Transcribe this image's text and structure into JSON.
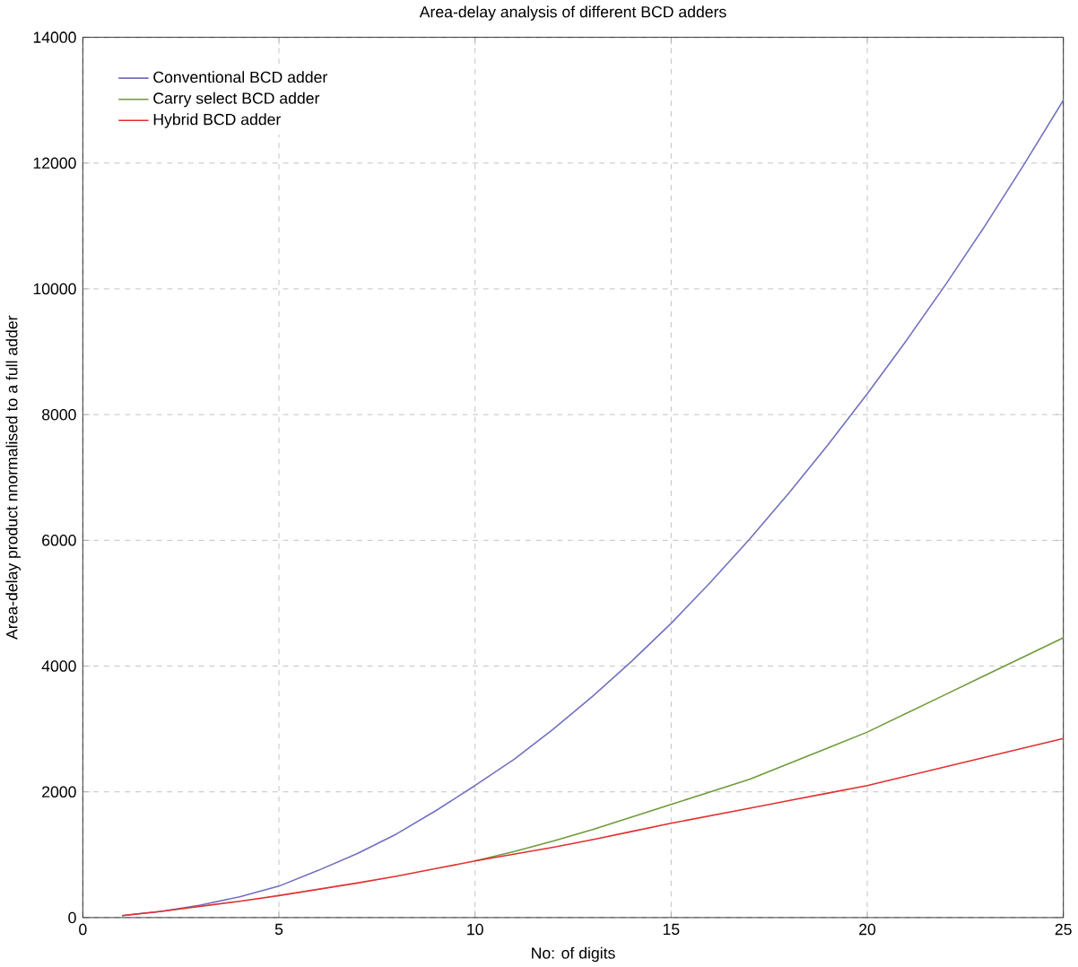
{
  "chart_data": {
    "type": "line",
    "title": "Area-delay analysis of different BCD adders",
    "xlabel": "No: of digits",
    "ylabel": "Area-delay product nnormalised to a full adder",
    "x": [
      1,
      2,
      3,
      4,
      5,
      6,
      7,
      8,
      9,
      10,
      11,
      12,
      13,
      14,
      15,
      16,
      17,
      18,
      19,
      20,
      21,
      22,
      23,
      24,
      25
    ],
    "series": [
      {
        "name": "Conventional BCD adder",
        "color": "#6f6fc0",
        "values": [
          30,
          100,
          200,
          330,
          500,
          750,
          1020,
          1330,
          1700,
          2100,
          2520,
          3000,
          3520,
          4080,
          4680,
          5330,
          6020,
          6750,
          7520,
          8330,
          9180,
          10070,
          11000,
          11980,
          13000
        ]
      },
      {
        "name": "Carry select BCD adder",
        "color": "#6f9a3a",
        "values": [
          null,
          null,
          null,
          null,
          null,
          null,
          null,
          null,
          null,
          900,
          1050,
          1220,
          1400,
          1600,
          1800,
          2000,
          2200,
          2450,
          2700,
          2950,
          3250,
          3550,
          3850,
          4150,
          4450
        ]
      },
      {
        "name": "Hybrid BCD adder",
        "color": "#e03030",
        "values": [
          30,
          100,
          180,
          260,
          350,
          450,
          550,
          660,
          780,
          900,
          1010,
          1120,
          1240,
          1370,
          1500,
          1620,
          1740,
          1860,
          1980,
          2100,
          2250,
          2400,
          2550,
          2700,
          2850
        ]
      }
    ],
    "xlim": [
      0,
      25
    ],
    "xticks": [
      0,
      5,
      10,
      15,
      20,
      25
    ],
    "ylim": [
      0,
      14000
    ],
    "yticks": [
      0,
      2000,
      4000,
      6000,
      8000,
      10000,
      12000,
      14000
    ],
    "grid": true,
    "legend": "top left",
    "line_style": "solid",
    "marker": "none"
  }
}
